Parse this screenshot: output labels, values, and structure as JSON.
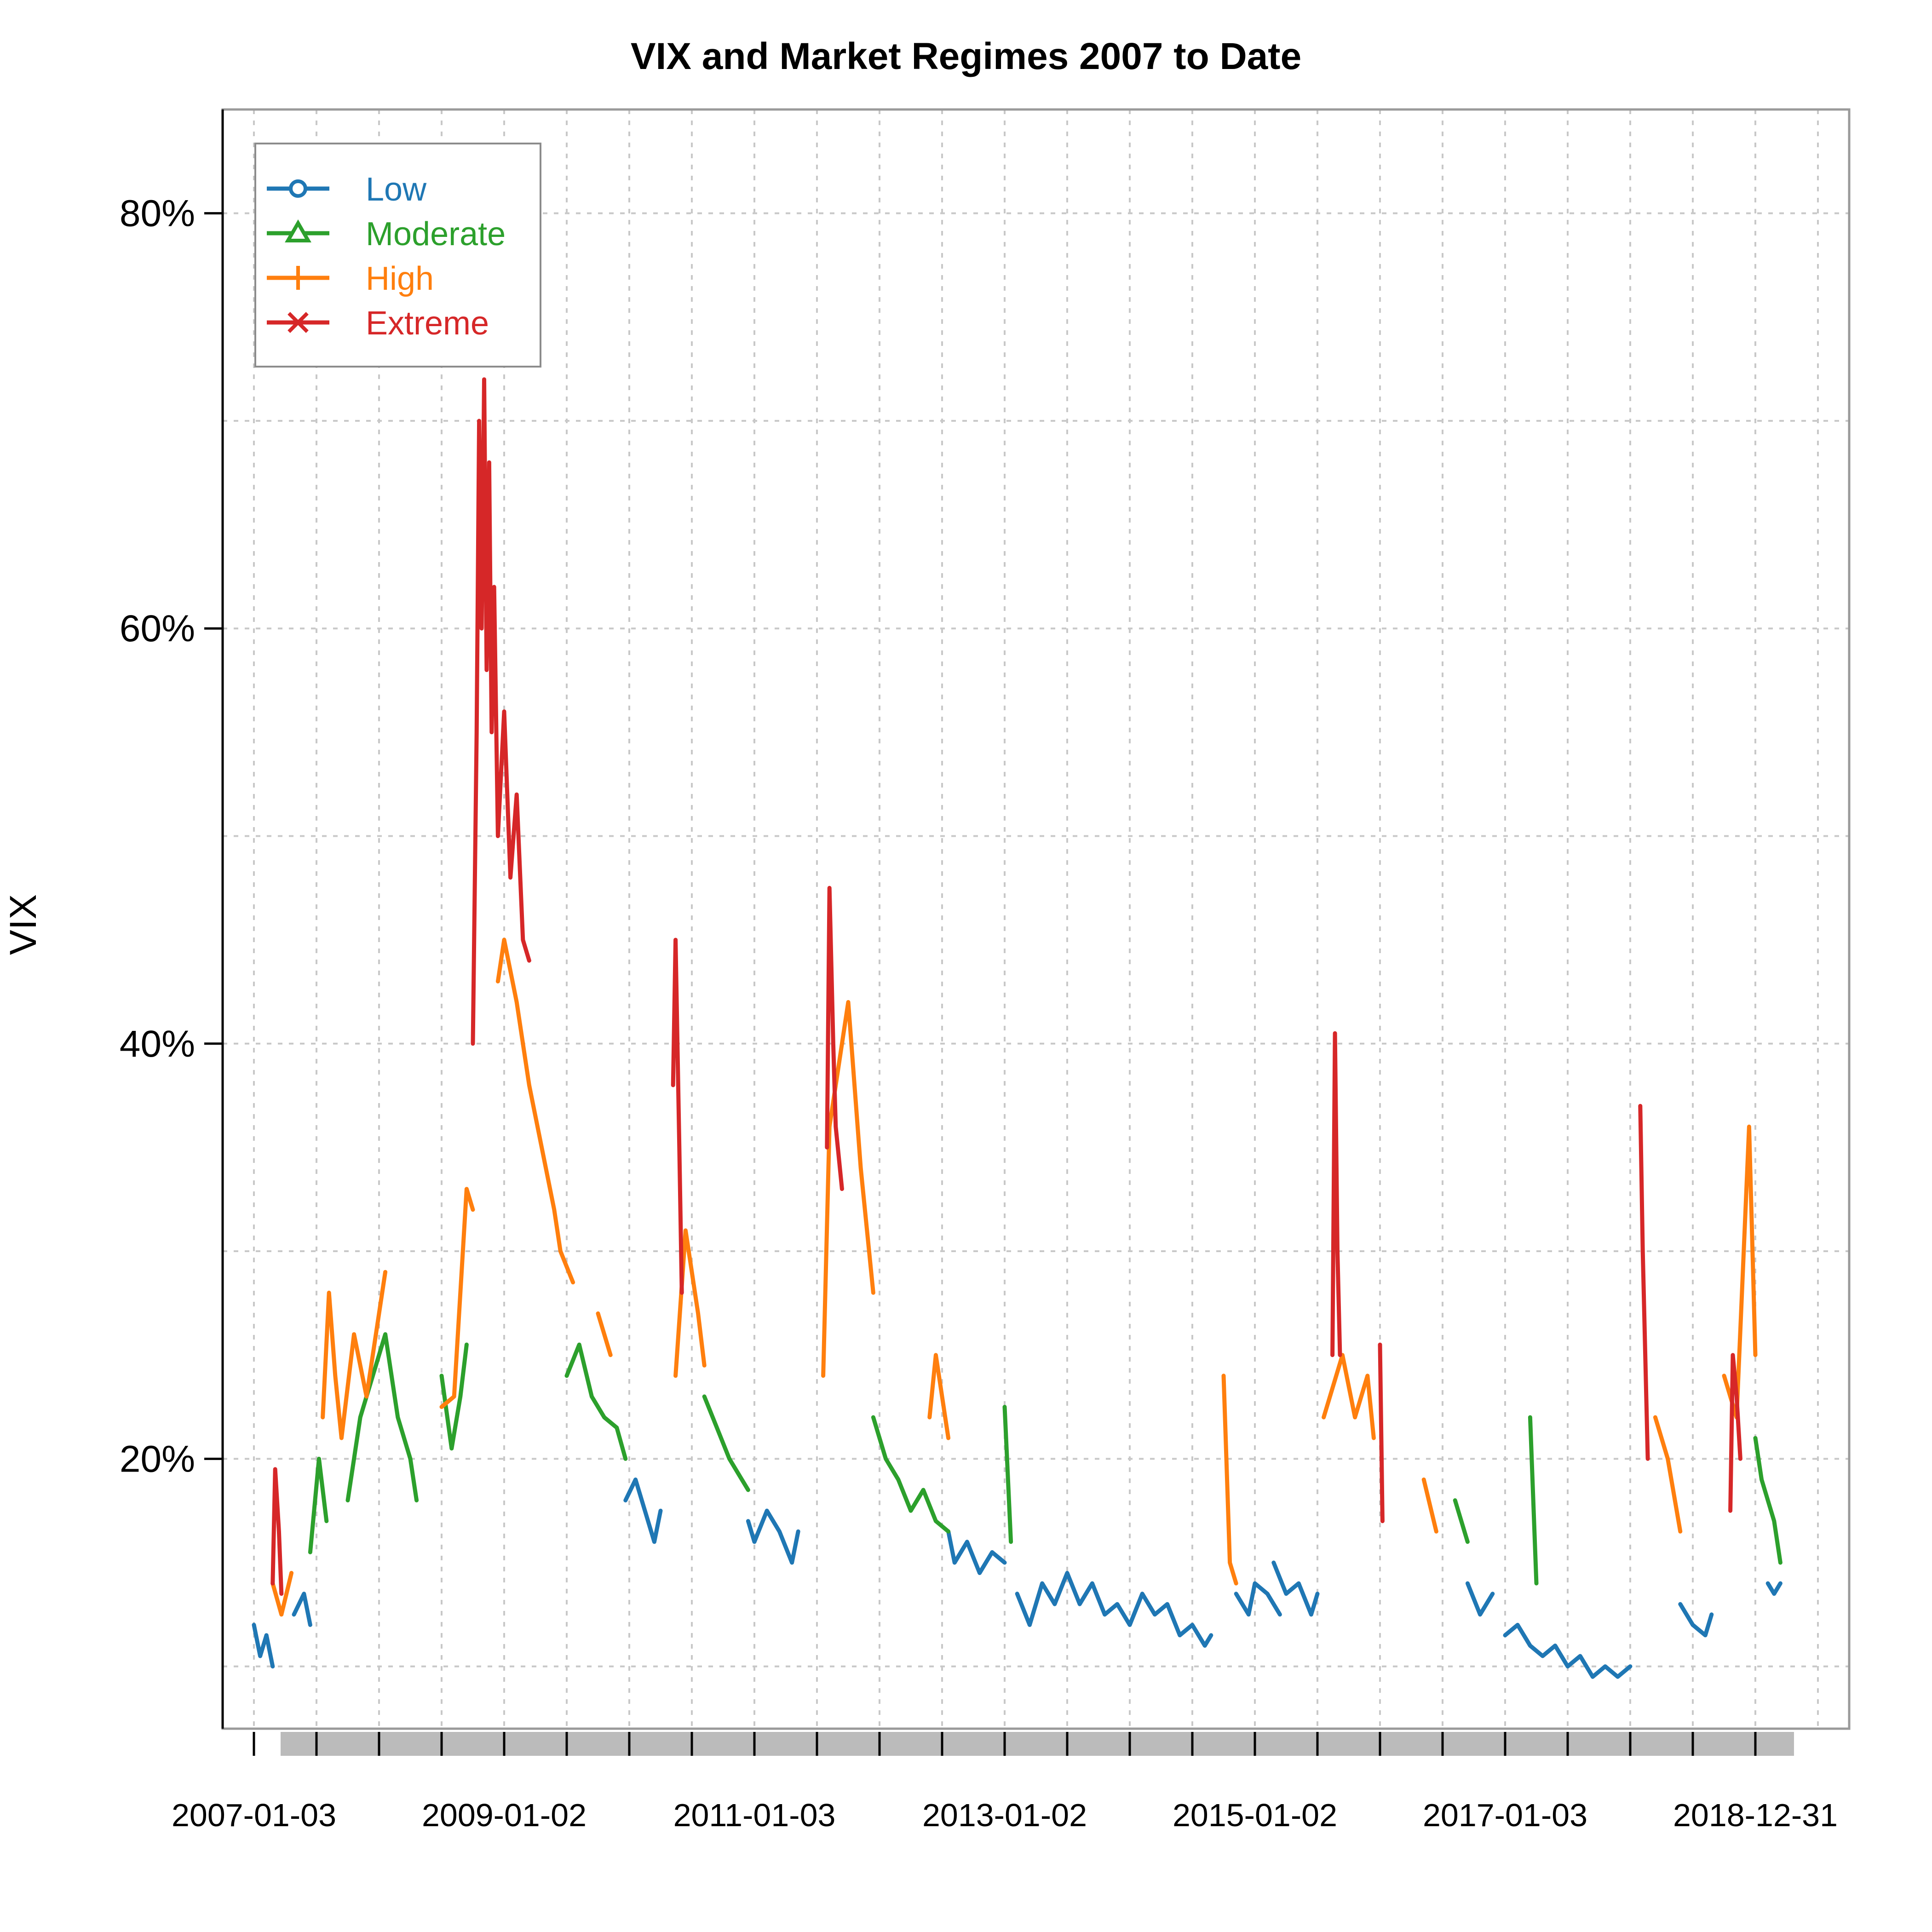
{
  "chart_data": {
    "type": "line",
    "title": "VIX and Market Regimes 2007 to Date",
    "xlabel": "",
    "ylabel": "VIX",
    "ylim": [
      7,
      85
    ],
    "xlim": [
      2006.75,
      2019.75
    ],
    "yticks": [
      20,
      40,
      60,
      80
    ],
    "ytick_labels": [
      "20%",
      "40%",
      "60%",
      "80%"
    ],
    "xticks": [
      2007.0,
      2009.0,
      2011.0,
      2013.0,
      2015.0,
      2017.0,
      2019.0
    ],
    "xtick_labels": [
      "2007-01-03",
      "2009-01-02",
      "2011-01-03",
      "2013-01-02",
      "2015-01-02",
      "2017-01-03",
      "2018-12-31"
    ],
    "grid": true,
    "legend": "top-left",
    "legend_entries": [
      "Low",
      "Moderate",
      "High",
      "Extreme"
    ],
    "series": [
      {
        "name": "Low",
        "color": "#1f77b4",
        "segments": [
          [
            [
              2007.0,
              12.0
            ],
            [
              2007.05,
              10.5
            ],
            [
              2007.1,
              11.5
            ],
            [
              2007.15,
              10.0
            ]
          ],
          [
            [
              2007.32,
              12.5
            ],
            [
              2007.4,
              13.5
            ],
            [
              2007.45,
              12.0
            ]
          ],
          [
            [
              2009.97,
              18.0
            ],
            [
              2010.05,
              19.0
            ],
            [
              2010.15,
              17.0
            ],
            [
              2010.2,
              16.0
            ],
            [
              2010.25,
              17.5
            ]
          ],
          [
            [
              2010.95,
              17.0
            ],
            [
              2011.0,
              16.0
            ],
            [
              2011.1,
              17.5
            ],
            [
              2011.2,
              16.5
            ],
            [
              2011.3,
              15.0
            ],
            [
              2011.35,
              16.5
            ]
          ],
          [
            [
              2012.55,
              16.5
            ],
            [
              2012.6,
              15.0
            ],
            [
              2012.7,
              16.0
            ],
            [
              2012.8,
              14.5
            ],
            [
              2012.9,
              15.5
            ],
            [
              2013.0,
              15.0
            ]
          ],
          [
            [
              2013.1,
              13.5
            ],
            [
              2013.2,
              12.0
            ],
            [
              2013.3,
              14.0
            ],
            [
              2013.4,
              13.0
            ],
            [
              2013.5,
              14.5
            ],
            [
              2013.6,
              13.0
            ],
            [
              2013.7,
              14.0
            ],
            [
              2013.8,
              12.5
            ],
            [
              2013.9,
              13.0
            ],
            [
              2014.0,
              12.0
            ],
            [
              2014.1,
              13.5
            ],
            [
              2014.2,
              12.5
            ],
            [
              2014.3,
              13.0
            ],
            [
              2014.4,
              11.5
            ],
            [
              2014.5,
              12.0
            ],
            [
              2014.6,
              11.0
            ],
            [
              2014.65,
              11.5
            ]
          ],
          [
            [
              2014.85,
              13.5
            ],
            [
              2014.95,
              12.5
            ],
            [
              2015.0,
              14.0
            ],
            [
              2015.1,
              13.5
            ],
            [
              2015.2,
              12.5
            ]
          ],
          [
            [
              2015.15,
              15.0
            ],
            [
              2015.25,
              13.5
            ],
            [
              2015.35,
              14.0
            ],
            [
              2015.45,
              12.5
            ],
            [
              2015.5,
              13.5
            ]
          ],
          [
            [
              2016.7,
              14.0
            ],
            [
              2016.8,
              12.5
            ],
            [
              2016.9,
              13.5
            ]
          ],
          [
            [
              2017.0,
              11.5
            ],
            [
              2017.1,
              12.0
            ],
            [
              2017.2,
              11.0
            ],
            [
              2017.3,
              10.5
            ],
            [
              2017.4,
              11.0
            ],
            [
              2017.5,
              10.0
            ],
            [
              2017.6,
              10.5
            ],
            [
              2017.7,
              9.5
            ],
            [
              2017.8,
              10.0
            ],
            [
              2017.9,
              9.5
            ],
            [
              2018.0,
              10.0
            ]
          ],
          [
            [
              2018.4,
              13.0
            ],
            [
              2018.5,
              12.0
            ],
            [
              2018.6,
              11.5
            ],
            [
              2018.65,
              12.5
            ]
          ],
          [
            [
              2019.1,
              14.0
            ],
            [
              2019.15,
              13.5
            ],
            [
              2019.2,
              14.0
            ]
          ]
        ]
      },
      {
        "name": "Moderate",
        "color": "#2ca02c",
        "segments": [
          [
            [
              2007.45,
              15.5
            ],
            [
              2007.52,
              20.0
            ],
            [
              2007.58,
              17.0
            ]
          ],
          [
            [
              2007.75,
              18.0
            ],
            [
              2007.85,
              22.0
            ],
            [
              2007.95,
              24.0
            ],
            [
              2008.05,
              26.0
            ],
            [
              2008.15,
              22.0
            ],
            [
              2008.25,
              20.0
            ],
            [
              2008.3,
              18.0
            ]
          ],
          [
            [
              2008.5,
              24.0
            ],
            [
              2008.58,
              20.5
            ],
            [
              2008.65,
              23.0
            ],
            [
              2008.7,
              25.5
            ]
          ],
          [
            [
              2009.5,
              24.0
            ],
            [
              2009.6,
              25.5
            ],
            [
              2009.7,
              23.0
            ],
            [
              2009.8,
              22.0
            ],
            [
              2009.9,
              21.5
            ],
            [
              2009.97,
              20.0
            ]
          ],
          [
            [
              2010.6,
              23.0
            ],
            [
              2010.7,
              21.5
            ],
            [
              2010.8,
              20.0
            ],
            [
              2010.9,
              19.0
            ],
            [
              2010.95,
              18.5
            ]
          ],
          [
            [
              2011.95,
              22.0
            ],
            [
              2012.05,
              20.0
            ],
            [
              2012.15,
              19.0
            ],
            [
              2012.25,
              17.5
            ],
            [
              2012.35,
              18.5
            ],
            [
              2012.45,
              17.0
            ],
            [
              2012.55,
              16.5
            ]
          ],
          [
            [
              2013.0,
              22.5
            ],
            [
              2013.05,
              16.0
            ]
          ],
          [
            [
              2016.6,
              18.0
            ],
            [
              2016.7,
              16.0
            ]
          ],
          [
            [
              2017.2,
              22.0
            ],
            [
              2017.25,
              14.0
            ]
          ],
          [
            [
              2019.0,
              21.0
            ],
            [
              2019.05,
              19.0
            ],
            [
              2019.15,
              17.0
            ],
            [
              2019.2,
              15.0
            ]
          ]
        ]
      },
      {
        "name": "High",
        "color": "#ff7f0e",
        "segments": [
          [
            [
              2007.15,
              14.0
            ],
            [
              2007.22,
              12.5
            ],
            [
              2007.3,
              14.5
            ]
          ],
          [
            [
              2007.55,
              22.0
            ],
            [
              2007.6,
              28.0
            ],
            [
              2007.65,
              24.0
            ],
            [
              2007.7,
              21.0
            ],
            [
              2007.8,
              26.0
            ],
            [
              2007.9,
              23.0
            ],
            [
              2008.0,
              27.0
            ],
            [
              2008.05,
              29.0
            ]
          ],
          [
            [
              2008.5,
              22.5
            ],
            [
              2008.6,
              23.0
            ],
            [
              2008.7,
              33.0
            ],
            [
              2008.75,
              32.0
            ]
          ],
          [
            [
              2008.95,
              43.0
            ],
            [
              2009.0,
              45.0
            ],
            [
              2009.1,
              42.0
            ],
            [
              2009.2,
              38.0
            ],
            [
              2009.3,
              35.0
            ],
            [
              2009.4,
              32.0
            ],
            [
              2009.45,
              30.0
            ],
            [
              2009.55,
              28.5
            ]
          ],
          [
            [
              2009.75,
              27.0
            ],
            [
              2009.85,
              25.0
            ]
          ],
          [
            [
              2010.37,
              24.0
            ],
            [
              2010.45,
              31.0
            ],
            [
              2010.55,
              27.0
            ],
            [
              2010.6,
              24.5
            ]
          ],
          [
            [
              2011.55,
              24.0
            ],
            [
              2011.6,
              36.0
            ],
            [
              2011.75,
              42.0
            ],
            [
              2011.85,
              34.0
            ],
            [
              2011.95,
              28.0
            ]
          ],
          [
            [
              2012.4,
              22.0
            ],
            [
              2012.45,
              25.0
            ],
            [
              2012.55,
              21.0
            ]
          ],
          [
            [
              2014.75,
              24.0
            ],
            [
              2014.8,
              15.0
            ],
            [
              2014.85,
              14.0
            ]
          ],
          [
            [
              2015.55,
              22.0
            ],
            [
              2015.7,
              25.0
            ],
            [
              2015.8,
              22.0
            ],
            [
              2015.9,
              24.0
            ],
            [
              2015.95,
              21.0
            ]
          ],
          [
            [
              2016.35,
              19.0
            ],
            [
              2016.45,
              16.5
            ]
          ],
          [
            [
              2018.2,
              22.0
            ],
            [
              2018.3,
              20.0
            ],
            [
              2018.4,
              16.5
            ]
          ],
          [
            [
              2018.75,
              24.0
            ],
            [
              2018.85,
              22.0
            ],
            [
              2018.95,
              36.0
            ],
            [
              2019.0,
              25.0
            ]
          ]
        ]
      },
      {
        "name": "Extreme",
        "color": "#d62728",
        "segments": [
          [
            [
              2007.15,
              14.0
            ],
            [
              2007.17,
              19.5
            ],
            [
              2007.2,
              16.5
            ],
            [
              2007.22,
              13.5
            ]
          ],
          [
            [
              2008.75,
              40.0
            ],
            [
              2008.78,
              55.0
            ],
            [
              2008.8,
              70.0
            ],
            [
              2008.82,
              60.0
            ],
            [
              2008.84,
              72.0
            ],
            [
              2008.86,
              58.0
            ],
            [
              2008.88,
              68.0
            ],
            [
              2008.9,
              55.0
            ],
            [
              2008.92,
              62.0
            ],
            [
              2008.95,
              50.0
            ],
            [
              2009.0,
              56.0
            ],
            [
              2009.05,
              48.0
            ],
            [
              2009.1,
              52.0
            ],
            [
              2009.15,
              45.0
            ],
            [
              2009.2,
              44.0
            ]
          ],
          [
            [
              2010.35,
              38.0
            ],
            [
              2010.37,
              45.0
            ],
            [
              2010.4,
              35.0
            ],
            [
              2010.42,
              28.0
            ]
          ],
          [
            [
              2011.58,
              35.0
            ],
            [
              2011.6,
              47.5
            ],
            [
              2011.63,
              40.0
            ],
            [
              2011.65,
              36.0
            ],
            [
              2011.7,
              33.0
            ]
          ],
          [
            [
              2015.62,
              25.0
            ],
            [
              2015.64,
              40.5
            ],
            [
              2015.66,
              30.0
            ],
            [
              2015.68,
              25.0
            ]
          ],
          [
            [
              2016.0,
              25.5
            ],
            [
              2016.02,
              17.0
            ]
          ],
          [
            [
              2018.08,
              37.0
            ],
            [
              2018.1,
              30.0
            ],
            [
              2018.14,
              20.0
            ]
          ],
          [
            [
              2018.8,
              17.5
            ],
            [
              2018.82,
              25.0
            ],
            [
              2018.85,
              23.0
            ],
            [
              2018.88,
              20.0
            ]
          ]
        ]
      }
    ]
  }
}
